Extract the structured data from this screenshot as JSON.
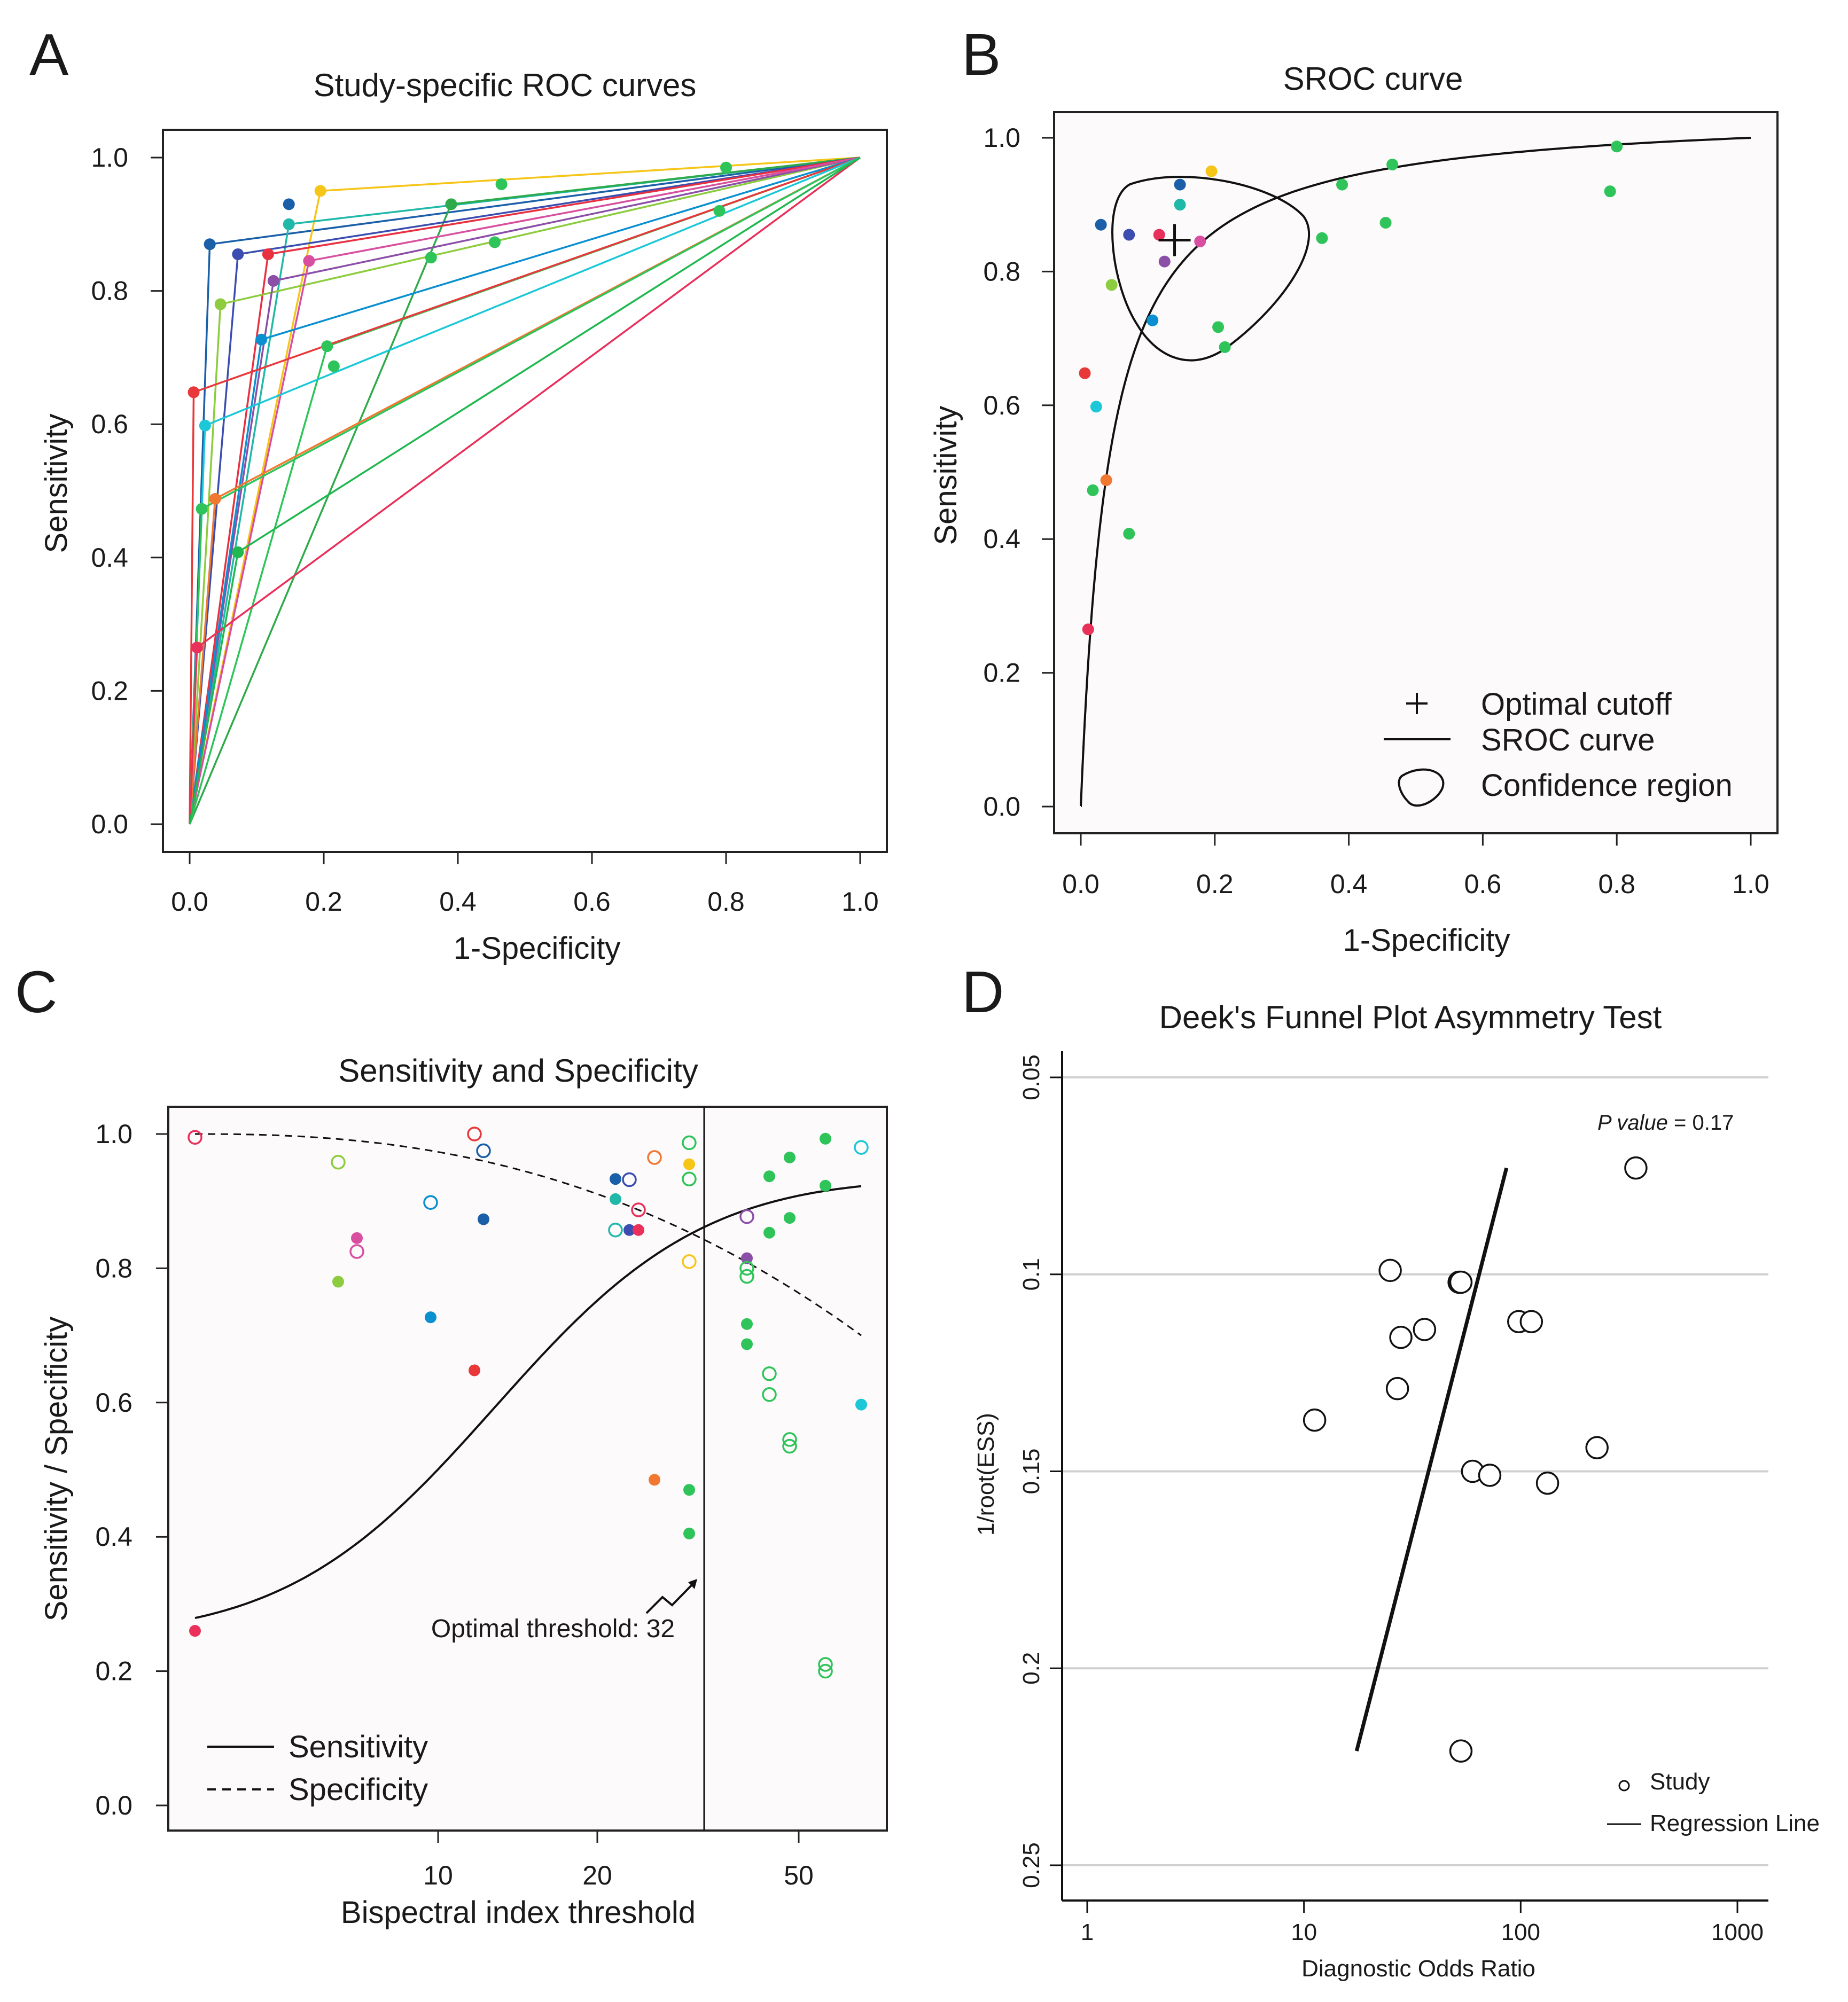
{
  "panels": {
    "A": {
      "letter": "A",
      "title": "Study-specific ROC curves",
      "xlabel": "1-Specificity",
      "ylabel": "Sensitivity"
    },
    "B": {
      "letter": "B",
      "title": "SROC curve",
      "xlabel": "1-Specificity",
      "ylabel": "Sensitivity",
      "legend": {
        "cutoff": "Optimal cutoff",
        "curve": "SROC curve",
        "region": "Confidence region"
      }
    },
    "C": {
      "letter": "C",
      "title": "Sensitivity and Specificity",
      "xlabel": "Bispectral index threshold",
      "ylabel": "Sensitivity / Specificity",
      "annotation": "Optimal threshold: 32",
      "legend": {
        "sens": "Sensitivity",
        "spec": "Specificity"
      }
    },
    "D": {
      "letter": "D",
      "title": "Deek's Funnel Plot Asymmetry Test",
      "xlabel": "Diagnostic Odds Ratio",
      "ylabel": "1/root(ESS)",
      "pvalue_label": "P value",
      "pvalue_text": " = 0.17",
      "legend": {
        "study": "Study",
        "line": "Regression Line"
      }
    }
  },
  "colors": {
    "studies": [
      "#1a5fa8",
      "#f5c518",
      "#20b8a8",
      "#2eaa4a",
      "#3b4db0",
      "#e83040",
      "#8ccc3e",
      "#8b4fa8",
      "#d94fa0",
      "#0a8fd0",
      "#2ec45a",
      "#e8383a",
      "#1cc8d8",
      "#f07830",
      "#2ec45a",
      "#e8305a",
      "#20b850"
    ]
  },
  "chart_data": [
    {
      "type": "line",
      "panel": "A",
      "title": "Study-specific ROC curves",
      "xlabel": "1-Specificity",
      "ylabel": "Sensitivity",
      "xlim": [
        0,
        1
      ],
      "ylim": [
        0,
        1
      ],
      "xticks": [
        "0.0",
        "0.2",
        "0.4",
        "0.6",
        "0.8",
        "1.0"
      ],
      "yticks": [
        "0.0",
        "0.2",
        "0.4",
        "0.6",
        "0.8",
        "1.0"
      ],
      "series": [
        {
          "fpr": 0.03,
          "sens": 0.87
        },
        {
          "fpr": 0.195,
          "sens": 0.95
        },
        {
          "fpr": 0.148,
          "sens": 0.9
        },
        {
          "fpr": 0.39,
          "sens": 0.93
        },
        {
          "fpr": 0.072,
          "sens": 0.855
        },
        {
          "fpr": 0.117,
          "sens": 0.855
        },
        {
          "fpr": 0.046,
          "sens": 0.78
        },
        {
          "fpr": 0.125,
          "sens": 0.815
        },
        {
          "fpr": 0.178,
          "sens": 0.845
        },
        {
          "fpr": 0.107,
          "sens": 0.727
        },
        {
          "fpr": 0.205,
          "sens": 0.717
        },
        {
          "fpr": 0.006,
          "sens": 0.648
        },
        {
          "fpr": 0.023,
          "sens": 0.598
        },
        {
          "fpr": 0.038,
          "sens": 0.488
        },
        {
          "fpr": 0.018,
          "sens": 0.473
        },
        {
          "fpr": 0.011,
          "sens": 0.265
        },
        {
          "fpr": 0.072,
          "sens": 0.408
        }
      ],
      "extra_points": [
        {
          "fpr": 0.148,
          "sens": 0.93
        },
        {
          "fpr": 0.465,
          "sens": 0.96
        },
        {
          "fpr": 0.8,
          "sens": 0.985
        },
        {
          "fpr": 0.455,
          "sens": 0.873
        },
        {
          "fpr": 0.36,
          "sens": 0.85
        },
        {
          "fpr": 0.215,
          "sens": 0.687
        },
        {
          "fpr": 0.79,
          "sens": 0.92
        }
      ]
    },
    {
      "type": "scatter",
      "panel": "B",
      "title": "SROC curve",
      "xlabel": "1-Specificity",
      "ylabel": "Sensitivity",
      "xlim": [
        0,
        1
      ],
      "ylim": [
        0,
        1
      ],
      "xticks": [
        "0.0",
        "0.2",
        "0.4",
        "0.6",
        "0.8",
        "1.0"
      ],
      "yticks": [
        "0.0",
        "0.2",
        "0.4",
        "0.6",
        "0.8",
        "1.0"
      ],
      "points": [
        {
          "x": 0.03,
          "y": 0.87,
          "c": 0
        },
        {
          "x": 0.195,
          "y": 0.95,
          "c": 1
        },
        {
          "x": 0.148,
          "y": 0.93,
          "c": 0
        },
        {
          "x": 0.148,
          "y": 0.9,
          "c": 2
        },
        {
          "x": 0.072,
          "y": 0.855,
          "c": 4
        },
        {
          "x": 0.117,
          "y": 0.855,
          "c": 15
        },
        {
          "x": 0.178,
          "y": 0.845,
          "c": 8
        },
        {
          "x": 0.125,
          "y": 0.815,
          "c": 7
        },
        {
          "x": 0.046,
          "y": 0.78,
          "c": 6
        },
        {
          "x": 0.107,
          "y": 0.727,
          "c": 9
        },
        {
          "x": 0.205,
          "y": 0.717,
          "c": 10
        },
        {
          "x": 0.215,
          "y": 0.687,
          "c": 10
        },
        {
          "x": 0.006,
          "y": 0.648,
          "c": 11
        },
        {
          "x": 0.023,
          "y": 0.598,
          "c": 12
        },
        {
          "x": 0.038,
          "y": 0.488,
          "c": 13
        },
        {
          "x": 0.018,
          "y": 0.473,
          "c": 10
        },
        {
          "x": 0.072,
          "y": 0.408,
          "c": 10
        },
        {
          "x": 0.011,
          "y": 0.265,
          "c": 15
        },
        {
          "x": 0.39,
          "y": 0.93,
          "c": 10
        },
        {
          "x": 0.465,
          "y": 0.96,
          "c": 10
        },
        {
          "x": 0.8,
          "y": 0.987,
          "c": 10
        },
        {
          "x": 0.79,
          "y": 0.92,
          "c": 10
        },
        {
          "x": 0.36,
          "y": 0.85,
          "c": 10
        },
        {
          "x": 0.455,
          "y": 0.873,
          "c": 10
        }
      ],
      "optimal_cutoff": {
        "x": 0.14,
        "y": 0.847
      }
    },
    {
      "type": "scatter",
      "panel": "C",
      "title": "Sensitivity and Specificity",
      "xlabel": "Bispectral index threshold",
      "ylabel": "Sensitivity / Specificity",
      "xticks": [
        "10",
        "20",
        "50"
      ],
      "yticks": [
        "0.0",
        "0.2",
        "0.4",
        "0.6",
        "0.8",
        "1.0"
      ],
      "optimal_threshold": 32,
      "sensitivity_points": [
        {
          "t": 0,
          "y": 0.26,
          "c": 15
        },
        {
          "t": 1,
          "y": 0.78,
          "c": 6
        },
        {
          "t": 2,
          "y": 0.845,
          "c": 8
        },
        {
          "t": 3,
          "y": 0.727,
          "c": 9
        },
        {
          "t": 4,
          "y": 0.648,
          "c": 11
        },
        {
          "t": 5,
          "y": 0.873,
          "c": 0
        },
        {
          "t": 6,
          "y": 0.933,
          "c": 0
        },
        {
          "t": 7,
          "y": 0.903,
          "c": 2
        },
        {
          "t": 8,
          "y": 0.857,
          "c": 4
        },
        {
          "t": 9,
          "y": 0.857,
          "c": 15
        },
        {
          "t": 10,
          "y": 0.485,
          "c": 13
        },
        {
          "t": 11,
          "y": 0.955,
          "c": 1
        },
        {
          "t": 12,
          "y": 0.47,
          "c": 10
        },
        {
          "t": 13,
          "y": 0.405,
          "c": 10
        },
        {
          "t": 14,
          "y": 0.815,
          "c": 7
        },
        {
          "t": 15,
          "y": 0.717,
          "c": 10
        },
        {
          "t": 16,
          "y": 0.687,
          "c": 10
        },
        {
          "t": 17,
          "y": 0.937,
          "c": 10
        },
        {
          "t": 18,
          "y": 0.853,
          "c": 10
        },
        {
          "t": 19,
          "y": 0.965,
          "c": 10
        },
        {
          "t": 20,
          "y": 0.875,
          "c": 10
        },
        {
          "t": 21,
          "y": 0.993,
          "c": 10
        },
        {
          "t": 22,
          "y": 0.923,
          "c": 10
        },
        {
          "t": 23,
          "y": 0.597,
          "c": 12
        }
      ],
      "specificity_points": [
        {
          "t": 0,
          "y": 0.995,
          "c": 15
        },
        {
          "t": 1,
          "y": 0.958,
          "c": 6
        },
        {
          "t": 2,
          "y": 0.825,
          "c": 8
        },
        {
          "t": 3,
          "y": 0.898,
          "c": 9
        },
        {
          "t": 4,
          "y": 1.0,
          "c": 11
        },
        {
          "t": 5,
          "y": 0.975,
          "c": 0
        },
        {
          "t": 6,
          "y": 0.857,
          "c": 2
        },
        {
          "t": 7,
          "y": 0.932,
          "c": 4
        },
        {
          "t": 8,
          "y": 0.887,
          "c": 15
        },
        {
          "t": 9,
          "y": 0.965,
          "c": 13
        },
        {
          "t": 10,
          "y": 0.987,
          "c": 10
        },
        {
          "t": 11,
          "y": 0.933,
          "c": 10
        },
        {
          "t": 12,
          "y": 0.81,
          "c": 1
        },
        {
          "t": 13,
          "y": 0.877,
          "c": 7
        },
        {
          "t": 14,
          "y": 0.8,
          "c": 10
        },
        {
          "t": 15,
          "y": 0.788,
          "c": 10
        },
        {
          "t": 16,
          "y": 0.643,
          "c": 10
        },
        {
          "t": 17,
          "y": 0.612,
          "c": 10
        },
        {
          "t": 18,
          "y": 0.545,
          "c": 10
        },
        {
          "t": 19,
          "y": 0.535,
          "c": 10
        },
        {
          "t": 20,
          "y": 0.21,
          "c": 10
        },
        {
          "t": 21,
          "y": 0.2,
          "c": 10
        },
        {
          "t": 22,
          "y": 0.98,
          "c": 12
        }
      ],
      "curves": {
        "sensitivity": {
          "from": 0.23,
          "to": 0.94
        },
        "specificity": {
          "from": 1.0,
          "to": 0.7
        }
      }
    },
    {
      "type": "scatter",
      "panel": "D",
      "title": "Deek's Funnel Plot Asymmetry Test",
      "xlabel": "Diagnostic Odds Ratio",
      "ylabel": "1/root(ESS)",
      "xscale": "log",
      "xlim": [
        1,
        1000
      ],
      "ylim": [
        0.05,
        0.25
      ],
      "yinverted": true,
      "xticks": [
        "1",
        "10",
        "100",
        "1000"
      ],
      "yticks": [
        "0.05",
        "0.1",
        "0.15",
        "0.2",
        "0.25"
      ],
      "points": [
        {
          "dor": 340,
          "ess": 0.073
        },
        {
          "dor": 25,
          "ess": 0.099
        },
        {
          "dor": 52,
          "ess": 0.102
        },
        {
          "dor": 53,
          "ess": 0.102
        },
        {
          "dor": 98,
          "ess": 0.112
        },
        {
          "dor": 112,
          "ess": 0.112
        },
        {
          "dor": 28,
          "ess": 0.116
        },
        {
          "dor": 36,
          "ess": 0.114
        },
        {
          "dor": 27,
          "ess": 0.129
        },
        {
          "dor": 11.2,
          "ess": 0.137
        },
        {
          "dor": 225,
          "ess": 0.144
        },
        {
          "dor": 60,
          "ess": 0.15
        },
        {
          "dor": 72,
          "ess": 0.151
        },
        {
          "dor": 133,
          "ess": 0.153
        },
        {
          "dor": 53,
          "ess": 0.221
        }
      ],
      "regression_line": [
        {
          "dor": 17.5,
          "ess": 0.221
        },
        {
          "dor": 86,
          "ess": 0.073
        }
      ],
      "p_value": 0.17
    }
  ]
}
